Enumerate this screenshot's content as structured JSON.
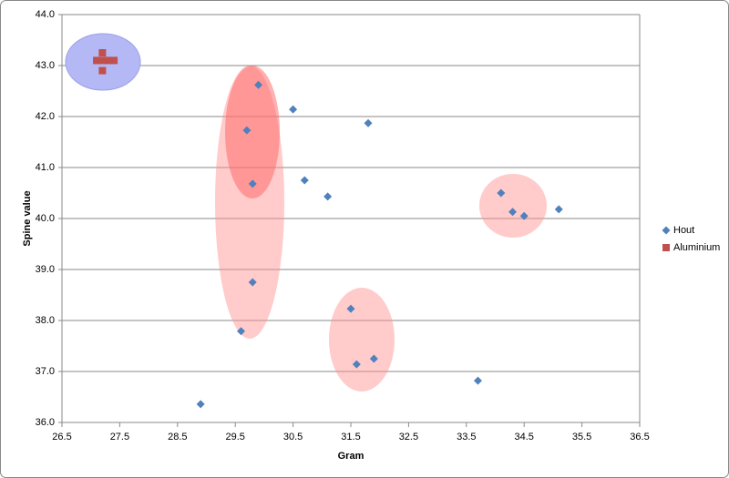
{
  "chart_data": {
    "type": "scatter",
    "x_label": "Gram",
    "y_label": "Spine value",
    "xlim": [
      26.5,
      36.5
    ],
    "xticks": [
      26.5,
      27.5,
      28.5,
      29.5,
      30.5,
      31.5,
      32.5,
      33.5,
      34.5,
      35.5,
      36.5
    ],
    "ylim": [
      36,
      44
    ],
    "yticks": [
      {
        "value": 36,
        "label": "36.0"
      },
      {
        "value": 37,
        "label": "37.0"
      },
      {
        "value": 38,
        "label": "38.0"
      },
      {
        "value": 39,
        "label": "39.0"
      },
      {
        "value": 40,
        "label": "40.0"
      },
      {
        "value": 41,
        "label": "41.0"
      },
      {
        "value": 42,
        "label": "42.0"
      },
      {
        "value": 43,
        "label": "43.0"
      },
      {
        "value": 44,
        "label": "44.0"
      }
    ],
    "grid": true,
    "legend": "right",
    "series": [
      {
        "name": "Hout",
        "color": "#4f81bd",
        "marker": "diamond",
        "x": [
          28.9,
          29.6,
          29.8,
          29.8,
          29.7,
          29.9,
          30.5,
          30.7,
          31.1,
          31.8,
          31.5,
          31.6,
          31.9,
          33.7,
          34.1,
          34.3,
          34.5,
          35.1
        ],
        "values": [
          36.36,
          37.79,
          38.75,
          40.68,
          41.73,
          42.62,
          42.14,
          40.75,
          40.43,
          41.87,
          38.23,
          37.14,
          37.25,
          36.82,
          40.5,
          40.13,
          40.05,
          40.18
        ]
      },
      {
        "name": "Aluminium",
        "color": "#c0504d",
        "marker": "square",
        "x": [
          27.1,
          27.2,
          27.3,
          27.4,
          27.2,
          27.2
        ],
        "values": [
          43.1,
          43.1,
          43.1,
          43.1,
          43.25,
          42.9
        ]
      }
    ]
  }
}
